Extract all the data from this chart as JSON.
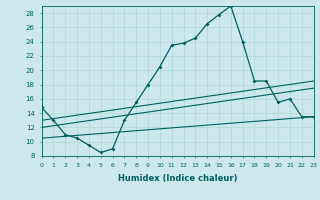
{
  "xlabel": "Humidex (Indice chaleur)",
  "background_color": "#cce8ee",
  "grid_color": "#aad4cc",
  "line_color": "#006060",
  "xlim": [
    0,
    23
  ],
  "ylim": [
    8,
    29
  ],
  "yticks": [
    8,
    10,
    12,
    14,
    16,
    18,
    20,
    22,
    24,
    26,
    28
  ],
  "xticks": [
    0,
    1,
    2,
    3,
    4,
    5,
    6,
    7,
    8,
    9,
    10,
    11,
    12,
    13,
    14,
    15,
    16,
    17,
    18,
    19,
    20,
    21,
    22,
    23
  ],
  "line1_x": [
    0,
    1,
    2,
    3,
    4,
    5,
    6,
    7,
    8,
    9,
    10,
    11,
    12,
    13,
    14,
    15,
    16,
    17,
    18,
    19,
    20,
    21,
    22,
    23
  ],
  "line1_y": [
    14.8,
    13.0,
    11.0,
    10.5,
    9.5,
    8.5,
    9.0,
    13.0,
    15.5,
    18.0,
    20.5,
    23.5,
    23.8,
    24.5,
    26.5,
    27.8,
    29.0,
    24.0,
    18.5,
    18.5,
    15.5,
    16.0,
    13.5,
    13.5
  ],
  "line2_x": [
    0,
    23
  ],
  "line2_y": [
    10.5,
    13.5
  ],
  "line3_x": [
    0,
    23
  ],
  "line3_y": [
    12.0,
    17.5
  ],
  "line4_x": [
    0,
    23
  ],
  "line4_y": [
    13.0,
    18.5
  ]
}
